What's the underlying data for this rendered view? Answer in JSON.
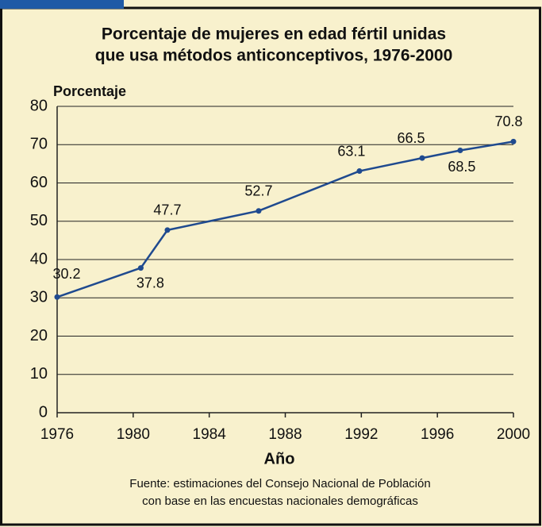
{
  "chart_data": {
    "type": "line",
    "title": [
      "Porcentaje de mujeres en edad fértil unidas",
      "que usa métodos anticonceptivos, 1976-2000"
    ],
    "y_label": "Porcentaje",
    "x_label": "Año",
    "source": [
      "Fuente: estimaciones del Consejo Nacional de Población",
      "con base en las encuestas nacionales demográficas"
    ],
    "x": [
      1976,
      1980.4,
      1981.8,
      1986.6,
      1991.9,
      1995.2,
      1997.2,
      2000
    ],
    "series": [
      {
        "name": "Porcentaje",
        "color": "#1f4a8f",
        "values": [
          30.2,
          37.8,
          47.7,
          52.7,
          63.1,
          66.5,
          68.5,
          70.8
        ]
      }
    ],
    "xlim": [
      1976,
      2000
    ],
    "xticks": [
      1976,
      1980,
      1984,
      1988,
      1992,
      1996,
      2000
    ],
    "ylim": [
      0,
      80
    ],
    "yticks": [
      0,
      10,
      20,
      30,
      40,
      50,
      60,
      70,
      80
    ],
    "grid": true
  }
}
